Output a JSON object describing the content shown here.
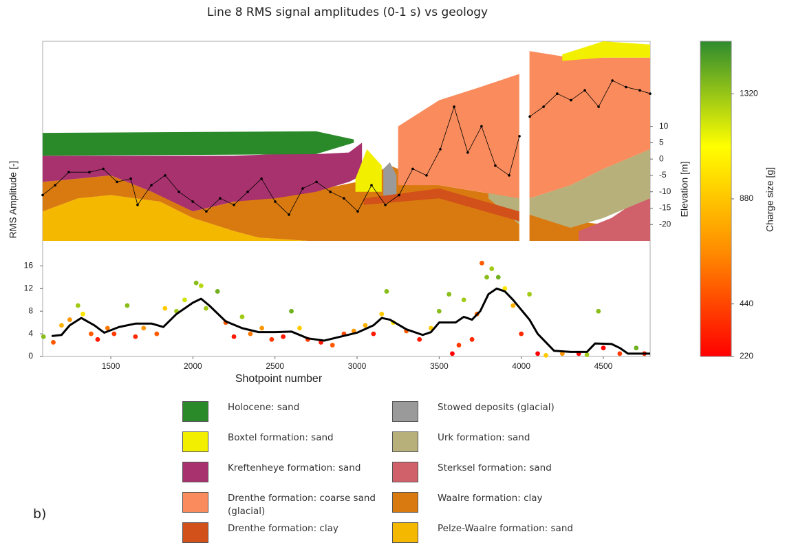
{
  "title": "Line 8 RMS signal amplitudes (0-1 s) vs geology",
  "panel_label": "b)",
  "chart_data": [
    {
      "type": "area",
      "ylabel": "Elevation [m]",
      "xlim": [
        1085,
        4785
      ],
      "ylim": [
        -25,
        36
      ],
      "yticks": [
        -20,
        -15,
        -10,
        -5,
        0,
        5,
        10
      ],
      "formations": [
        {
          "name": "Holocene: sand",
          "color": "#2a8a2a",
          "x": [
            1085,
            2750,
            2980
          ],
          "top": [
            8,
            8.5,
            6
          ],
          "bottom": [
            1,
            1.5,
            5
          ]
        },
        {
          "name": "Boxtel formation: sand",
          "color": "#f2f000",
          "x": [
            2990,
            3060,
            3150,
            null,
            4250,
            4500,
            4785
          ],
          "top": [
            -6,
            3,
            -2,
            null,
            32,
            36,
            35
          ],
          "bottom": [
            -10,
            -10,
            -10,
            null,
            30,
            31,
            31
          ]
        },
        {
          "name": "Kreftenheye formation: sand",
          "color": "#a8326e",
          "x": [
            1085,
            1300,
            1500,
            1750,
            2000,
            2250,
            2500,
            2750,
            2950,
            3030
          ],
          "top": [
            1,
            1,
            1,
            1,
            1,
            1,
            1.5,
            1.5,
            2,
            5
          ],
          "bottom": [
            -7,
            -6,
            -5,
            -10,
            -16,
            -13,
            -12,
            -10,
            -7,
            -5
          ]
        },
        {
          "name": "Drenthe formation: coarse sand (glacial)",
          "color": "#f98b5c",
          "x": [
            3250,
            3500,
            3750,
            3988,
            null,
            4050,
            4300,
            4500,
            4785
          ],
          "top": [
            10,
            18,
            22,
            26,
            null,
            33,
            31,
            31,
            31
          ],
          "bottom": [
            -8,
            -8,
            -10,
            -12,
            null,
            -12,
            -8,
            -3,
            3
          ]
        },
        {
          "name": "Drenthe formation: clay",
          "color": "#d2501a",
          "x": [
            3040,
            3500,
            3988
          ],
          "top": [
            -12,
            -9,
            -16
          ],
          "bottom": [
            -14,
            -12,
            -19
          ]
        },
        {
          "name": "Stowed deposits (glacial)",
          "color": "#9a9a9a",
          "x": [
            3160,
            3200,
            3240
          ],
          "top": [
            -3,
            -1,
            -5
          ],
          "bottom": [
            -12,
            -12,
            -12
          ]
        },
        {
          "name": "Urk formation: sand",
          "color": "#b8b07a",
          "x": [
            3800,
            3988,
            null,
            4050,
            4300,
            4500,
            4785
          ],
          "top": [
            -10,
            -12,
            null,
            -12,
            -8,
            -3,
            3
          ],
          "bottom": [
            -12,
            -20,
            null,
            -17,
            -21,
            -18,
            -12
          ]
        },
        {
          "name": "Sterksel formation: sand",
          "color": "#d0606a",
          "x": [
            4350,
            4550,
            4785
          ],
          "top": [
            -22,
            -18,
            -10
          ],
          "bottom": [
            -25,
            -25,
            -25
          ]
        },
        {
          "name": "Waalre formation: clay",
          "color": "#d97a10",
          "x": [
            1085,
            1300,
            1500,
            1800,
            2000,
            2250,
            2400,
            2700,
            3000,
            3200,
            3500,
            3988,
            null,
            4050,
            4785
          ],
          "top": [
            -7,
            -6,
            -5,
            -11,
            -16,
            -13,
            -12,
            -10,
            -7,
            -2,
            -8,
            -12,
            null,
            -17,
            -22
          ],
          "bottom": [
            -16,
            -12,
            -11,
            -13,
            -18,
            -22,
            -24,
            -25,
            -25,
            -25,
            -25,
            -25,
            null,
            -25,
            -25
          ]
        },
        {
          "name": "Pelze-Waalre formation: sand",
          "color": "#f5b800",
          "x": [
            1085,
            1300,
            1500,
            1800,
            2000,
            2250,
            2400,
            2700
          ],
          "top": [
            -16,
            -12,
            -11,
            -13,
            -18,
            -22,
            -24,
            -25
          ],
          "bottom": [
            -25,
            -25,
            -25,
            -25,
            -25,
            -25,
            -25,
            -25
          ]
        }
      ],
      "series": [
        {
          "color": "#000000",
          "x": [
            1085,
            1161,
            1244,
            1370,
            1454,
            1538,
            1622,
            1663,
            1747,
            1831,
            1915,
            1999,
            2082,
            2166,
            2250,
            2334,
            2418,
            2501,
            2585,
            2669,
            2753,
            2837,
            2920,
            3004,
            3088,
            3172,
            3256,
            3339,
            3423,
            3507,
            3591,
            3674,
            3758,
            3842,
            3926,
            3989,
            4010,
            4052,
            4136,
            4219,
            4303,
            4387,
            4471,
            4555,
            4638,
            4722,
            4785
          ],
          "values": [
            -11,
            -8,
            -4,
            -4,
            -3,
            -7,
            -6,
            -14,
            -8,
            -5,
            -10,
            -13,
            -16,
            -12,
            -14,
            -10,
            -6,
            -13,
            -17,
            -9,
            -7,
            -10,
            -12,
            -16,
            -8,
            -14,
            -11,
            -3,
            -5,
            3,
            16,
            2,
            10,
            -2,
            -5,
            7,
            null,
            13,
            16,
            20,
            18,
            21,
            16,
            24,
            22,
            21,
            20
          ]
        }
      ]
    },
    {
      "type": "scatter",
      "xlabel": "Shotpoint number",
      "ylabel": "RMS Amplitude [-]",
      "xlim": [
        1085,
        4785
      ],
      "xticks": [
        1500,
        2000,
        2500,
        3000,
        3500,
        4000,
        4500
      ],
      "ylim": [
        0,
        18
      ],
      "yticks": [
        0,
        4,
        8,
        12,
        16
      ],
      "line": {
        "color": "#000000",
        "x": [
          1140,
          1200,
          1250,
          1320,
          1400,
          1460,
          1550,
          1650,
          1750,
          1820,
          1900,
          2000,
          2050,
          2100,
          2200,
          2300,
          2400,
          2500,
          2600,
          2700,
          2800,
          2900,
          3000,
          3100,
          3150,
          3200,
          3300,
          3400,
          3450,
          3500,
          3600,
          3650,
          3700,
          3750,
          3800,
          3850,
          3900,
          3950,
          4050,
          4100,
          4150,
          4200,
          4300,
          4400,
          4450,
          4550,
          4600,
          4650,
          4785
        ],
        "values": [
          3.6,
          3.8,
          5.5,
          6.8,
          5.5,
          4.2,
          5.2,
          5.8,
          5.8,
          5.2,
          7.5,
          9.5,
          10.2,
          9,
          6.2,
          5,
          4.3,
          4.3,
          4.4,
          3.2,
          2.8,
          3.5,
          4.2,
          5.5,
          6.8,
          6.5,
          4.8,
          3.8,
          4.3,
          6,
          6,
          7,
          6.5,
          8,
          11,
          12,
          11.5,
          10,
          6.5,
          4,
          2.5,
          1,
          0.8,
          0.8,
          2.3,
          2.2,
          1.5,
          0.5,
          0.5
        ]
      },
      "points": {
        "x": [
          1090,
          1150,
          1200,
          1250,
          1300,
          1330,
          1380,
          1420,
          1480,
          1520,
          1600,
          1650,
          1700,
          1780,
          1830,
          1900,
          1950,
          2020,
          2050,
          2080,
          2150,
          2200,
          2250,
          2300,
          2350,
          2420,
          2480,
          2550,
          2600,
          2650,
          2700,
          2780,
          2850,
          2920,
          2980,
          3050,
          3100,
          3150,
          3180,
          3220,
          3300,
          3380,
          3450,
          3500,
          3560,
          3580,
          3620,
          3650,
          3700,
          3730,
          3760,
          3790,
          3820,
          3860,
          3900,
          3950,
          4000,
          4050,
          4100,
          4150,
          4250,
          4350,
          4400,
          4470,
          4500,
          4600,
          4700,
          4750
        ],
        "values": [
          3.5,
          2.5,
          5.5,
          6.5,
          9,
          7.5,
          4,
          3,
          5,
          4,
          9,
          3.5,
          5,
          4,
          8.5,
          8,
          10,
          13,
          12.5,
          8.5,
          11.5,
          6,
          3.5,
          7,
          4,
          5,
          3,
          3.5,
          8,
          5,
          3,
          2.5,
          2,
          4,
          4.5,
          5.5,
          4,
          7.5,
          11.5,
          6,
          4.5,
          3,
          5,
          8,
          11,
          0.5,
          2,
          10,
          3,
          7.5,
          16.5,
          14,
          15.5,
          14,
          12,
          9,
          4,
          11,
          0.5,
          0.2,
          0.5,
          0.5,
          0.3,
          8,
          1.5,
          0.5,
          1.5,
          0.5
        ],
        "charge": [
          1350,
          500,
          800,
          700,
          1300,
          1000,
          500,
          300,
          600,
          400,
          1350,
          350,
          700,
          500,
          900,
          1300,
          1200,
          1350,
          1250,
          1300,
          1400,
          500,
          300,
          1300,
          600,
          700,
          400,
          300,
          1400,
          900,
          400,
          300,
          500,
          450,
          700,
          800,
          300,
          900,
          1350,
          1000,
          500,
          300,
          900,
          1350,
          1350,
          220,
          400,
          1300,
          350,
          550,
          500,
          1350,
          1300,
          1400,
          1000,
          800,
          350,
          1300,
          220,
          900,
          700,
          220,
          1300,
          1350,
          220,
          400,
          1400,
          300
        ]
      },
      "colorbar": {
        "label": "Charge size [g]",
        "lim": [
          220,
          1540
        ],
        "ticks": [
          220,
          440,
          880,
          1320
        ],
        "colors": [
          "#ff0000",
          "#ff8c00",
          "#ffff00",
          "#2e8b2e"
        ]
      }
    }
  ]
}
